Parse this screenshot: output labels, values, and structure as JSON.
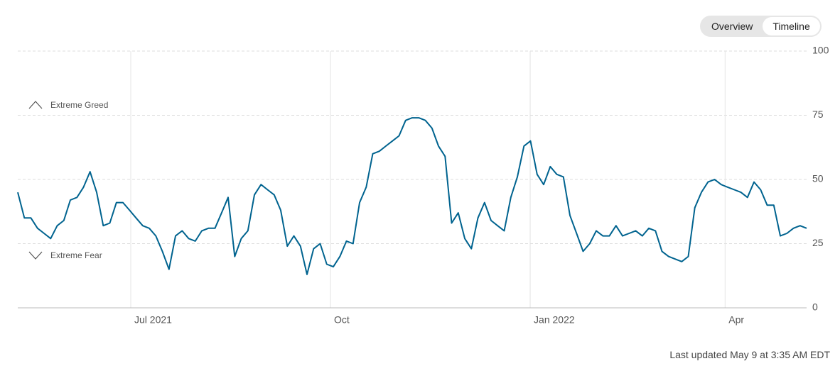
{
  "controls": {
    "tabs": [
      "Overview",
      "Timeline"
    ]
  },
  "footer": "Last updated May 9 at 3:35 AM EDT",
  "chart_data": {
    "type": "line",
    "annotations": [
      "Extreme Greed",
      "Extreme Fear"
    ],
    "values": [
      45,
      35,
      35,
      31,
      29,
      27,
      32,
      34,
      42,
      43,
      47,
      53,
      45,
      32,
      33,
      41,
      41,
      38,
      35,
      32,
      31,
      28,
      22,
      15,
      28,
      30,
      27,
      26,
      30,
      31,
      31,
      37,
      43,
      20,
      27,
      30,
      44,
      48,
      46,
      44,
      38,
      24,
      28,
      24,
      13,
      23,
      25,
      17,
      16,
      20,
      26,
      25,
      41,
      47,
      60,
      61,
      63,
      65,
      67,
      73,
      74,
      74,
      73,
      70,
      63,
      59,
      33,
      37,
      27,
      23,
      35,
      41,
      34,
      32,
      30,
      43,
      51,
      63,
      65,
      52,
      48,
      55,
      52,
      51,
      36,
      29,
      22,
      25,
      30,
      28,
      28,
      32,
      28,
      29,
      30,
      28,
      31,
      30,
      22,
      20,
      19,
      18,
      20,
      39,
      45,
      49,
      50,
      48,
      47,
      46,
      45,
      43,
      49,
      46,
      40,
      40,
      28,
      29,
      31,
      32,
      31
    ],
    "color": "#00638f",
    "xlim": [
      0,
      120
    ],
    "xticks": [
      {
        "value": 17.19,
        "label": "Jul 2021"
      },
      {
        "value": 47.57,
        "label": "Oct"
      },
      {
        "value": 77.95,
        "label": "Jan 2022"
      },
      {
        "value": 107.6,
        "label": "Apr"
      }
    ],
    "ylim": [
      0,
      100
    ],
    "yticks": [
      0,
      25,
      50,
      75,
      100
    ],
    "grid": true
  }
}
